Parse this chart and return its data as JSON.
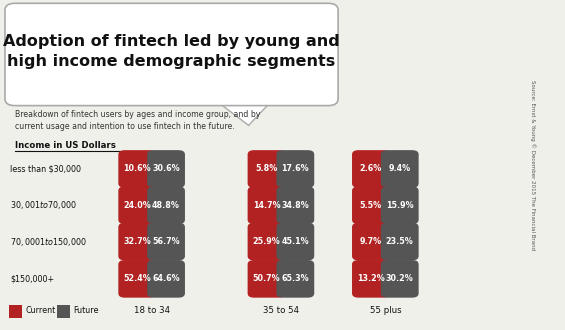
{
  "title": "Adoption of fintech led by young and\nhigh income demographic segments",
  "subtitle": "Breakdown of fintech users by ages and income group, and by\ncurrent usage and intention to use fintech in the future.",
  "income_label": "Income in US Dollars",
  "income_categories": [
    "less than $30,000",
    "$30,001 to $70,000",
    "$70,0001 to $150,000",
    "$150,000+"
  ],
  "age_groups": [
    "18 to 34",
    "35 to 54",
    "55 plus"
  ],
  "current_values": [
    [
      10.6,
      5.8,
      2.6
    ],
    [
      24.0,
      14.7,
      5.5
    ],
    [
      32.7,
      25.9,
      9.7
    ],
    [
      52.4,
      50.7,
      13.2
    ]
  ],
  "future_values": [
    [
      30.6,
      17.6,
      9.4
    ],
    [
      48.8,
      34.8,
      15.9
    ],
    [
      56.7,
      45.1,
      23.5
    ],
    [
      64.6,
      65.3,
      30.2
    ]
  ],
  "current_color": "#b22222",
  "future_color": "#555555",
  "bg_color": "#f0f0eb",
  "title_box_color": "#ffffff",
  "text_color": "#111111",
  "source_text": "Source: Ernst & Young © December 2015 The Financial Brand",
  "legend_current": "Current",
  "legend_future": "Future"
}
